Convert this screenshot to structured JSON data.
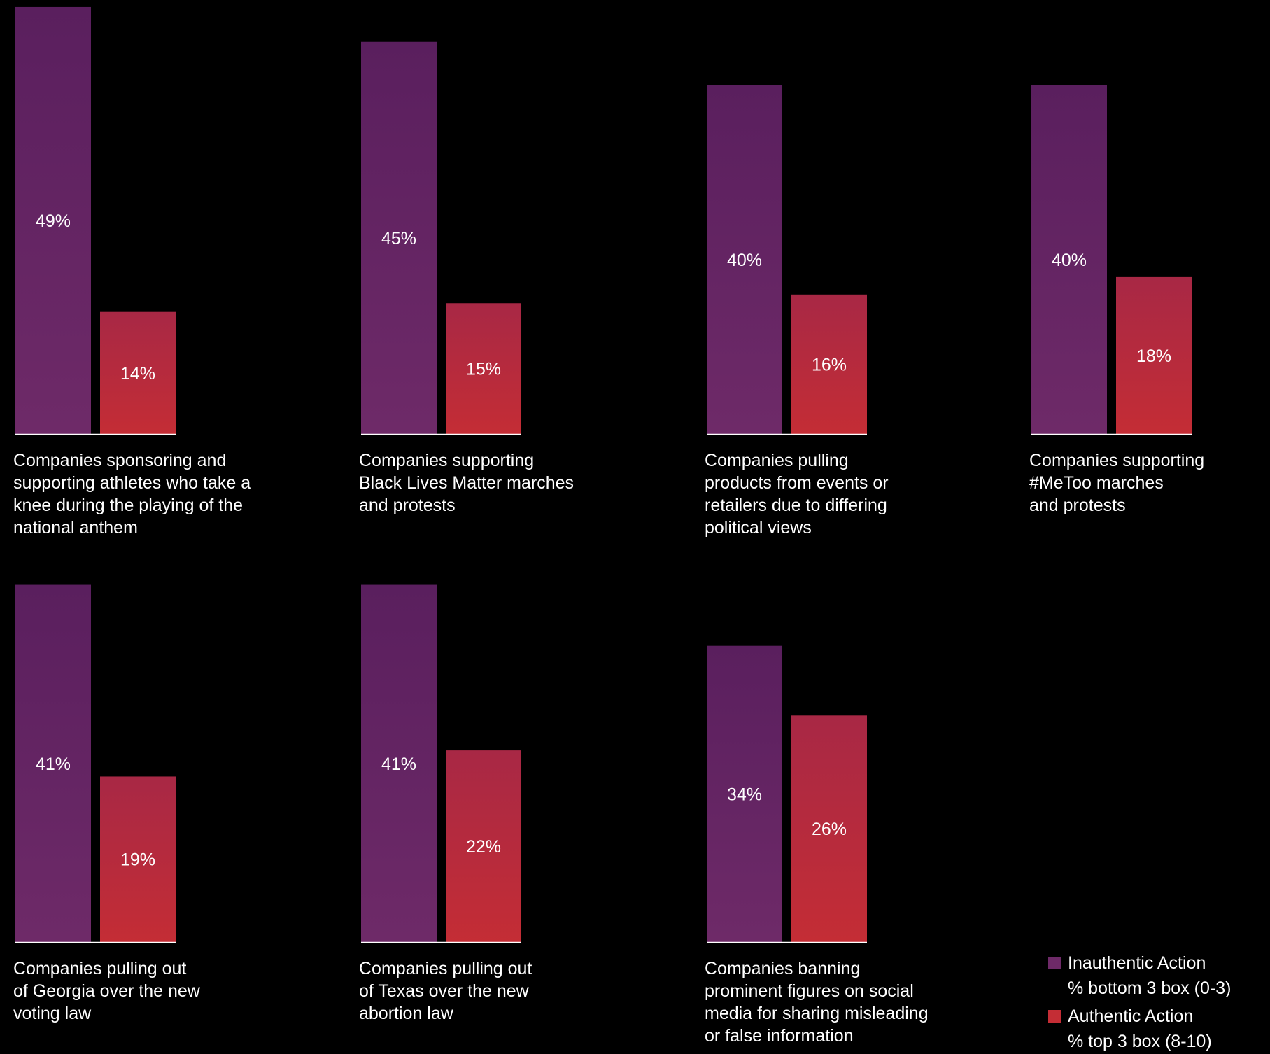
{
  "colors": {
    "background": "#000000",
    "inauthentic_top": "#5a1f5e",
    "inauthentic_bottom": "#6e2a68",
    "authentic_top": "#a82845",
    "authentic_bottom": "#c42d35",
    "baseline": "#ffffff",
    "text": "#ffffff"
  },
  "legend": {
    "inauthentic": {
      "line1": "Inauthentic Action",
      "line2": "% bottom 3 box (0-3)"
    },
    "authentic": {
      "line1": "Authentic Action",
      "line2": "% top 3 box (8-10)"
    }
  },
  "chart_data": {
    "type": "bar",
    "ylim": [
      0,
      60
    ],
    "grid": false,
    "legend_position": "bottom-right",
    "series": [
      {
        "name": "Inauthentic Action % bottom 3 box (0-3)",
        "values": [
          49,
          45,
          40,
          40,
          41,
          41,
          34
        ]
      },
      {
        "name": "Authentic Action % top 3 box (8-10)",
        "values": [
          14,
          15,
          16,
          18,
          19,
          22,
          26
        ]
      }
    ],
    "categories": [
      "Companies sponsoring and supporting athletes who take a knee during the playing of the national anthem",
      "Companies supporting Black Lives Matter marches and protests",
      "Companies pulling products from events or retailers due to differing political views",
      "Companies supporting #MeToo marches and protests",
      "Companies pulling out of Georgia over the new voting law",
      "Companies pulling out of Texas over the new abortion law",
      "Companies banning prominent figures on social media for sharing misleading or false information"
    ],
    "panels": [
      {
        "caption_lines": [
          "Companies sponsoring and",
          "supporting athletes who take a",
          "knee during the playing of the",
          "national anthem"
        ],
        "inauthentic": 49,
        "authentic": 14,
        "inauthentic_label": "49%",
        "authentic_label": "14%"
      },
      {
        "caption_lines": [
          "Companies supporting",
          "Black Lives Matter marches",
          "and protests"
        ],
        "inauthentic": 45,
        "authentic": 15,
        "inauthentic_label": "45%",
        "authentic_label": "15%"
      },
      {
        "caption_lines": [
          "Companies pulling",
          "products from events or",
          "retailers due to differing",
          "political views"
        ],
        "inauthentic": 40,
        "authentic": 16,
        "inauthentic_label": "40%",
        "authentic_label": "16%"
      },
      {
        "caption_lines": [
          "Companies supporting",
          "#MeToo marches",
          "and protests"
        ],
        "inauthentic": 40,
        "authentic": 18,
        "inauthentic_label": "40%",
        "authentic_label": "18%"
      },
      {
        "caption_lines": [
          "Companies pulling out",
          "of Georgia over the new",
          "voting law"
        ],
        "inauthentic": 41,
        "authentic": 19,
        "inauthentic_label": "41%",
        "authentic_label": "19%"
      },
      {
        "caption_lines": [
          "Companies pulling out",
          "of Texas over the new",
          "abortion law"
        ],
        "inauthentic": 41,
        "authentic": 22,
        "inauthentic_label": "41%",
        "authentic_label": "22%"
      },
      {
        "caption_lines": [
          "Companies banning",
          "prominent figures on social",
          "media for sharing misleading",
          "or false information"
        ],
        "inauthentic": 34,
        "authentic": 26,
        "inauthentic_label": "34%",
        "authentic_label": "26%"
      }
    ]
  }
}
